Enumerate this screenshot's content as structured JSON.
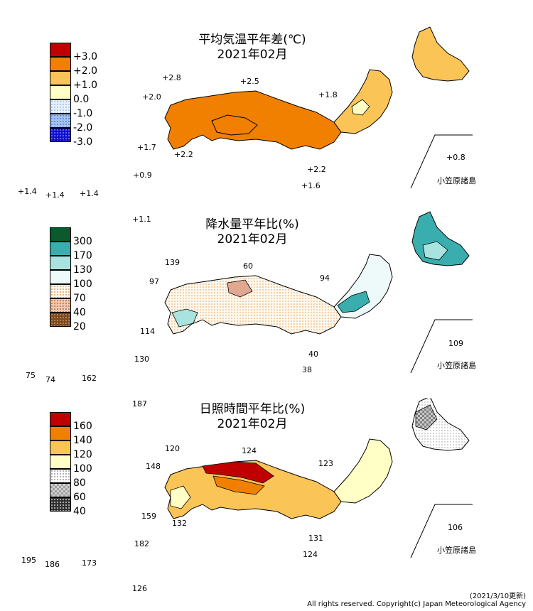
{
  "panels": {
    "temp": {
      "title": "平均気温平年差(℃)",
      "subtitle": "2021年02月",
      "legend": [
        "+3.0",
        "+2.0",
        "+1.0",
        "0.0",
        "-1.0",
        "-2.0",
        "-3.0"
      ],
      "legend_colors": [
        "#c00000",
        "#f28000",
        "#fbc456",
        "#ffffc6",
        "#dbeaf6",
        "#6e9ce6",
        "#1010cc"
      ],
      "labels": {
        "rebun": "+2.8",
        "sado": "+2.5",
        "okiislands": "+2.0",
        "kanto_isl": "+1.8",
        "goto": "+1.7",
        "tanegashima": "+2.2",
        "hachijo": "+2.2",
        "izu_s": "+1.6",
        "amami": "+0.9",
        "yonaguni": "+1.4",
        "miyako": "+1.4",
        "okinawa": "+1.4",
        "daito": "+1.1",
        "ogasawara": "+0.8"
      },
      "ogasawara_name": "小笠原諸島"
    },
    "precip": {
      "title": "降水量平年比(%)",
      "subtitle": "2021年02月",
      "legend": [
        "300",
        "170",
        "130",
        "100",
        "70",
        "40",
        "20"
      ],
      "legend_colors": [
        "#0a5a2e",
        "#3aaeae",
        "#a9e3e0",
        "#eefafa",
        "#fbe6c8",
        "#e0a890",
        "#7a4a20"
      ],
      "labels": {
        "rebun": "139",
        "sado": "60",
        "okiislands": "97",
        "kanto_isl": "94",
        "goto": "114",
        "hachijo": "40",
        "izu_s": "38",
        "amami": "130",
        "yonaguni": "75",
        "miyako": "74",
        "okinawa": "162",
        "daito": "187",
        "ogasawara": "109"
      },
      "ogasawara_name": "小笠原諸島"
    },
    "sun": {
      "title": "日照時間平年比(%)",
      "subtitle": "2021年02月",
      "legend": [
        "160",
        "140",
        "120",
        "100",
        "80",
        "60",
        "40"
      ],
      "legend_colors": [
        "#c00000",
        "#f28000",
        "#fbc456",
        "#ffffc6",
        "#e6e6e6",
        "#a0a0a0",
        "#303030"
      ],
      "labels": {
        "rebun": "120",
        "sado": "124",
        "okiislands": "148",
        "kanto_isl": "123",
        "goto": "159",
        "tanegashima": "132",
        "hachijo": "131",
        "izu_s": "124",
        "amami": "182",
        "yonaguni": "195",
        "miyako": "186",
        "okinawa": "173",
        "daito": "126",
        "ogasawara": "106"
      },
      "ogasawara_name": "小笠原諸島"
    }
  },
  "footer": {
    "updated": "(2021/3/10更新)",
    "copyright": "All rights reserved. Copyright(c) Japan Meteorological Agency"
  }
}
